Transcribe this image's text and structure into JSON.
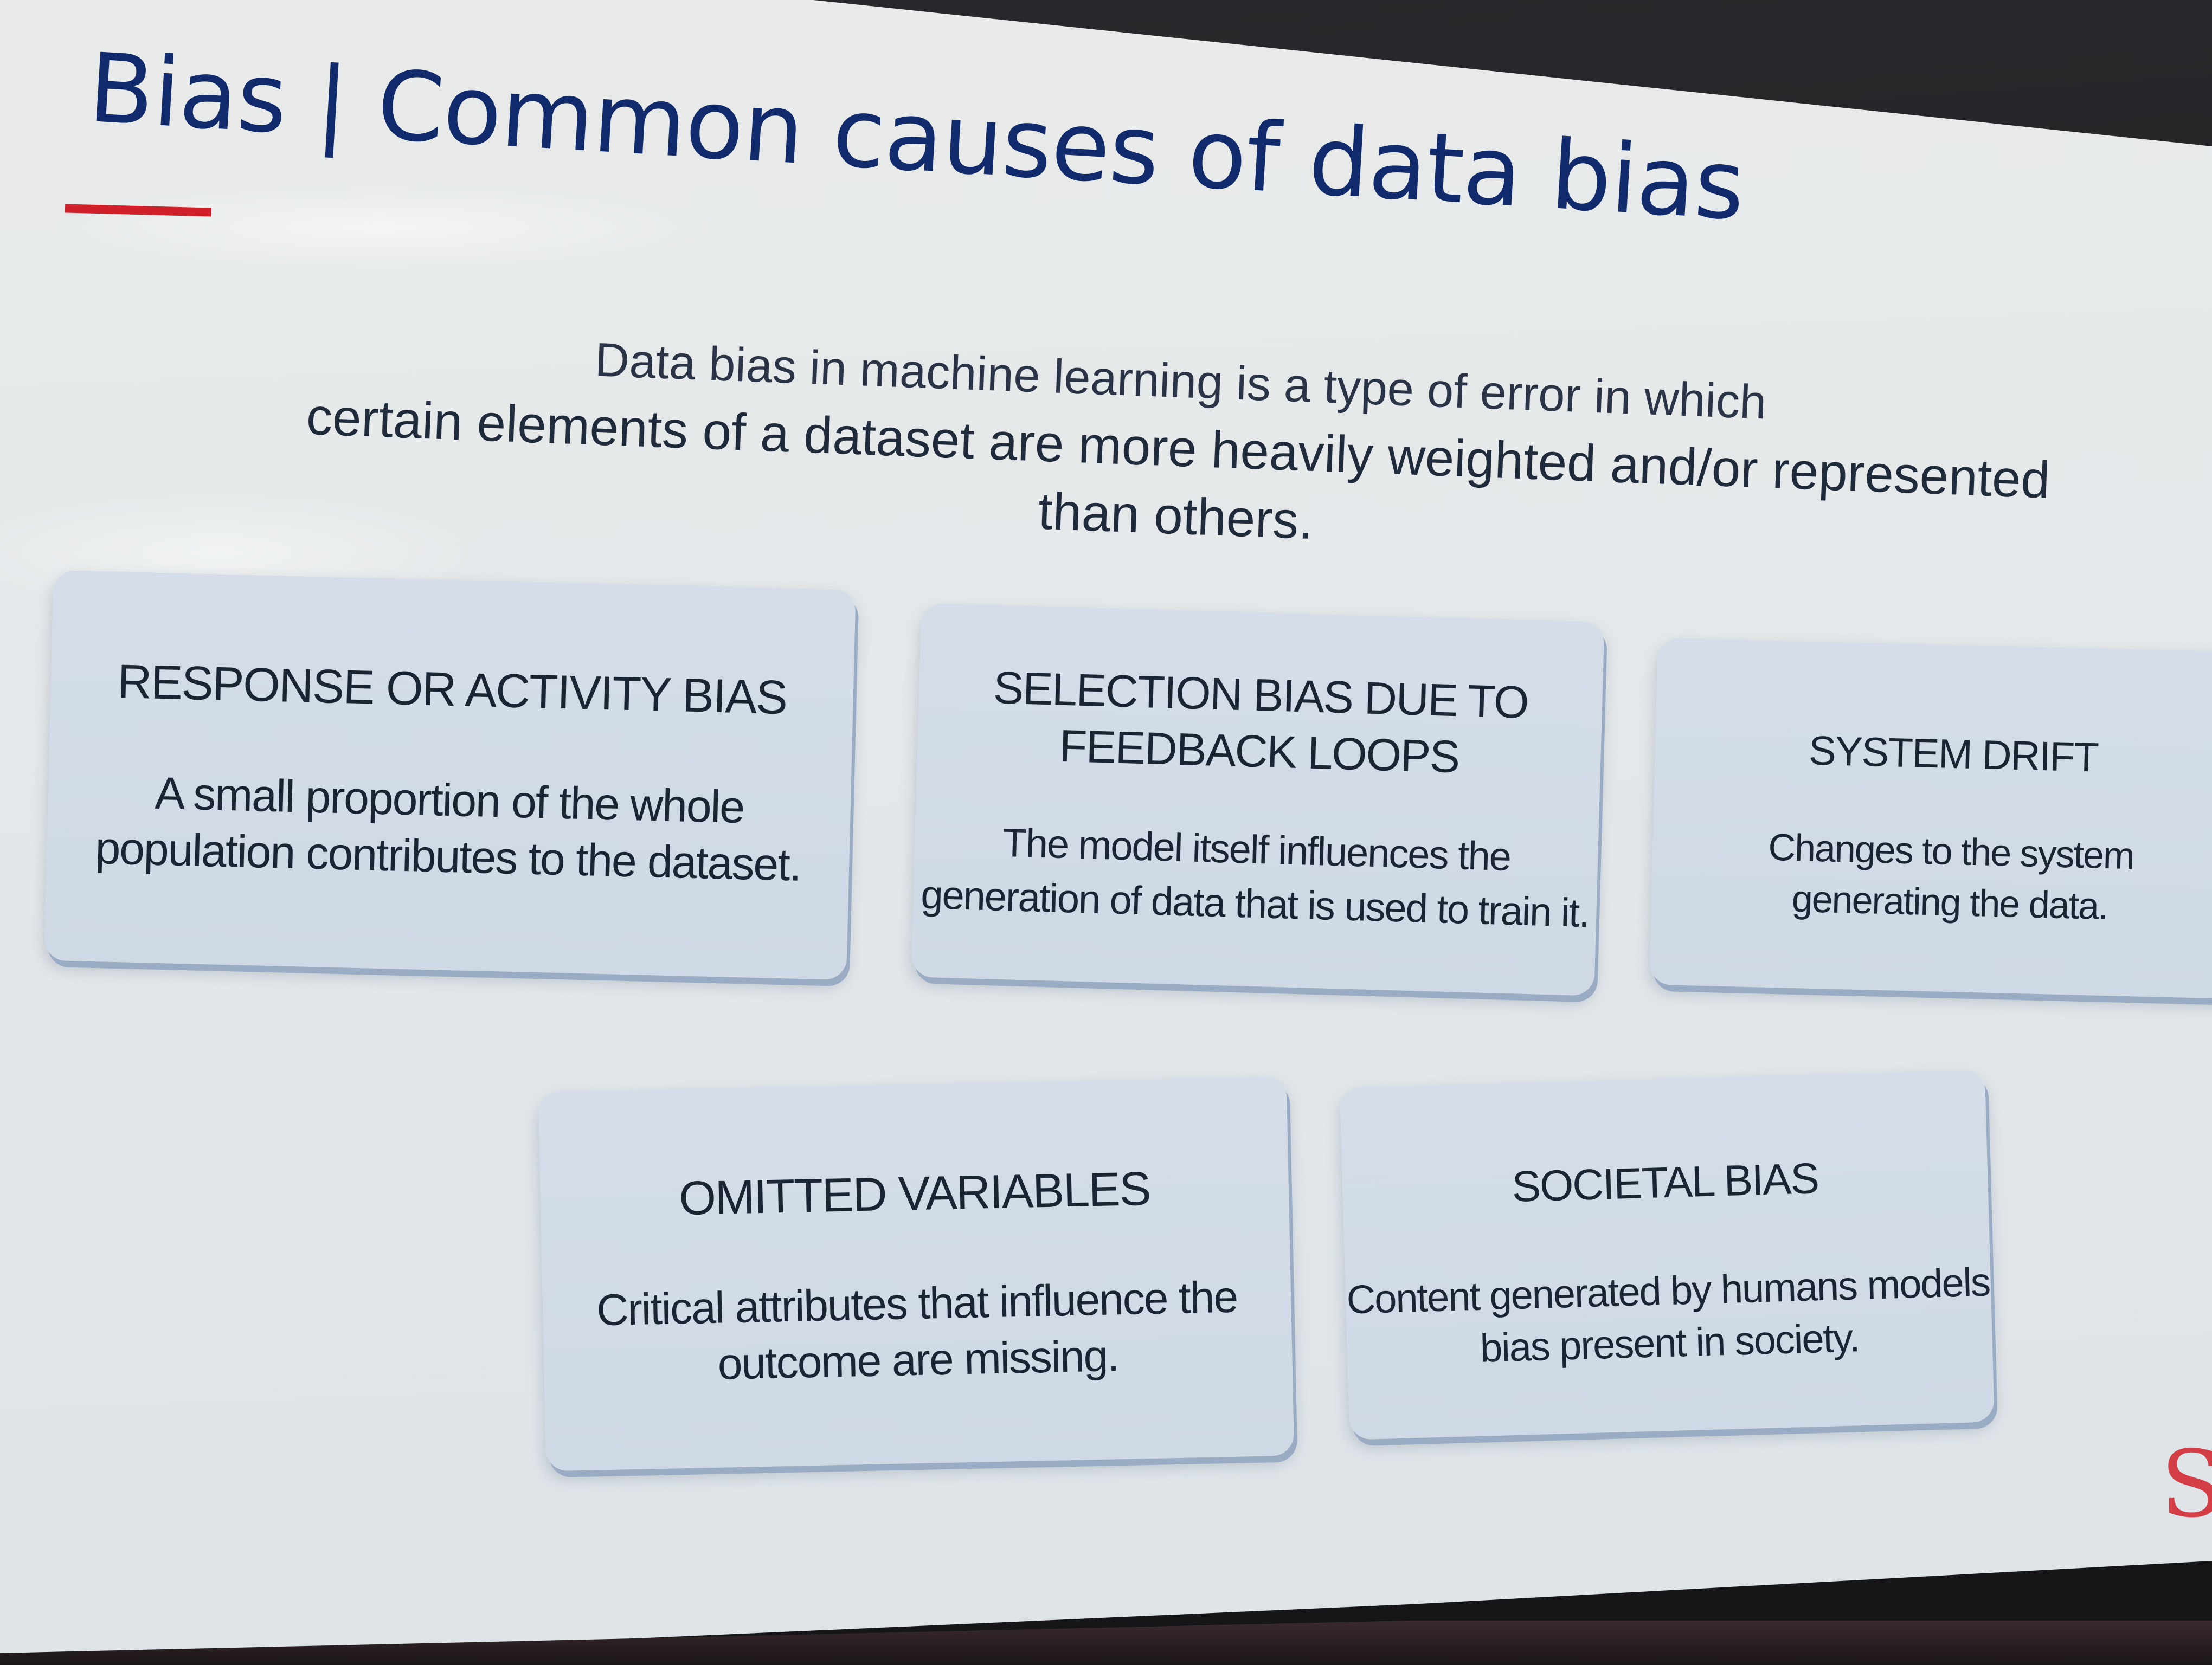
{
  "slide": {
    "title": "Bias | Common causes of data bias",
    "intro_line1": "Data bias in machine learning is a type of error in which",
    "intro_line2": "certain elements of a dataset are more heavily weighted and/or represented than others."
  },
  "cards": [
    {
      "title": "RESPONSE OR ACTIVITY BIAS",
      "description": "A small proportion of the whole\npopulation contributes to the dataset."
    },
    {
      "title": "SELECTION BIAS DUE TO\nFEEDBACK LOOPS",
      "description": "The model itself influences the\ngeneration of data that is used to train it."
    },
    {
      "title": "SYSTEM DRIFT",
      "description": "Changes to the system\ngenerating the data."
    },
    {
      "title": "OMITTED VARIABLES",
      "description": "Critical attributes that influence the\noutcome are missing."
    },
    {
      "title": "SOCIETAL BIAS",
      "description": "Content generated by humans models\nbias present in society."
    }
  ],
  "logo": {
    "fragment": "S"
  },
  "colors": {
    "title": "#112a6b",
    "accent": "#d0202a",
    "card_background": "#d4dde8",
    "screen_background": "#e6e9ea"
  }
}
